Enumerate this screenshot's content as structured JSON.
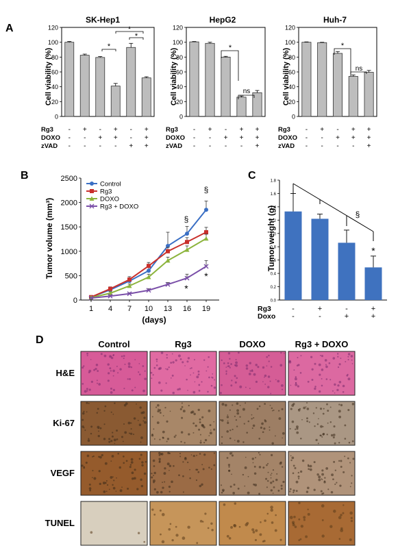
{
  "panel_letters": [
    "A",
    "B",
    "C",
    "D"
  ],
  "panel_a": {
    "ylabel": "Cell viability (%)",
    "yticks": [
      "0",
      "20",
      "40",
      "60",
      "80",
      "100",
      "120"
    ],
    "row_labels_1": [
      "Rg3",
      "DOXO",
      "zVAD"
    ],
    "row_labels_2": [
      "Rg3",
      "DOXO",
      "zVAD"
    ],
    "row_labels_3": [
      "Rg3",
      "DOXO",
      "zVAD"
    ],
    "star": "*",
    "ns": "ns"
  },
  "panel_b": {
    "ylabel": "Tumor volume (mm³)",
    "xlabel": "(days)",
    "section": "§",
    "star": "*"
  },
  "panel_c": {
    "ylabel": "Tumor weight (g)",
    "row_labels": [
      "Rg3",
      "Doxo"
    ],
    "section": "§",
    "star": "*"
  },
  "panel_d": {
    "columns": [
      "Control",
      "Rg3",
      "DOXO",
      "Rg3 + DOXO"
    ],
    "rows": [
      "H&E",
      "Ki-67",
      "VEGF",
      "TUNEL"
    ],
    "tile_colors": {
      "H&E": [
        "#d75b98",
        "#e06aa2",
        "#d55d96",
        "#dc69a1"
      ],
      "Ki-67": [
        "#8a5a32",
        "#a88768",
        "#9d7e64",
        "#aa9784"
      ],
      "VEGF": [
        "#955b2c",
        "#9b6b45",
        "#a48468",
        "#b0937a"
      ],
      "TUNEL": [
        "#d8cfbe",
        "#c6955a",
        "#c18a4c",
        "#a86a34"
      ]
    }
  },
  "chart_data": [
    {
      "type": "bar",
      "title": "SK-Hep1",
      "ylabel": "Cell viability (%)",
      "ylim": [
        0,
        120
      ],
      "categories": [
        "1",
        "2",
        "3",
        "4",
        "5",
        "6"
      ],
      "values": [
        100,
        82.5,
        79.5,
        41,
        93,
        52
      ],
      "errors": [
        1,
        1.5,
        1.2,
        3.5,
        5.5,
        1.5
      ],
      "conditions": {
        "Rg3": [
          "-",
          "+",
          "-",
          "+",
          "-",
          "+"
        ],
        "DOXO": [
          "-",
          "-",
          "+",
          "+",
          "-",
          "+"
        ],
        "zVAD": [
          "-",
          "-",
          "-",
          "-",
          "+",
          "+"
        ]
      }
    },
    {
      "type": "bar",
      "title": "HepG2",
      "ylabel": "Cell viability (%)",
      "ylim": [
        0,
        120
      ],
      "categories": [
        "1",
        "2",
        "3",
        "4",
        "5"
      ],
      "values": [
        100.5,
        98.5,
        80,
        26,
        32
      ],
      "errors": [
        0.5,
        1.5,
        1,
        1.5,
        3
      ],
      "conditions": {
        "Rg3": [
          "-",
          "+",
          "-",
          "+",
          "+"
        ],
        "DOXO": [
          "-",
          "-",
          "+",
          "+",
          "+"
        ],
        "zVAD": [
          "-",
          "-",
          "-",
          "-",
          "+"
        ]
      }
    },
    {
      "type": "bar",
      "title": "Huh-7",
      "ylabel": "Cell viability (%)",
      "ylim": [
        0,
        120
      ],
      "categories": [
        "1",
        "2",
        "3",
        "4",
        "5"
      ],
      "values": [
        100,
        99.5,
        85,
        54,
        59.5
      ],
      "errors": [
        0.5,
        0.5,
        2.5,
        2,
        2.5
      ],
      "conditions": {
        "Rg3": [
          "-",
          "+",
          "-",
          "+",
          "+"
        ],
        "DOXO": [
          "-",
          "-",
          "+",
          "+",
          "+"
        ],
        "zVAD": [
          "-",
          "-",
          "-",
          "-",
          "+"
        ]
      }
    },
    {
      "type": "line",
      "xlabel": "(days)",
      "ylabel": "Tumor volume (mm³)",
      "ylim": [
        0,
        2500
      ],
      "yticks": [
        0,
        500,
        1000,
        1500,
        2000,
        2500
      ],
      "x": [
        1,
        4,
        7,
        10,
        13,
        16,
        19
      ],
      "legend": "top-left",
      "series": [
        {
          "name": "Control",
          "color": "#3a6fc4",
          "marker": "circle",
          "values": [
            60,
            210,
            390,
            600,
            1110,
            1360,
            1850
          ],
          "errors": [
            20,
            40,
            60,
            80,
            280,
            150,
            180
          ]
        },
        {
          "name": "Rg3",
          "color": "#c9302c",
          "marker": "square",
          "values": [
            60,
            230,
            420,
            700,
            1000,
            1190,
            1390
          ],
          "errors": [
            20,
            40,
            60,
            70,
            80,
            90,
            100
          ]
        },
        {
          "name": "DOXO",
          "color": "#8cb43c",
          "marker": "triangle",
          "values": [
            50,
            140,
            290,
            470,
            810,
            1030,
            1260
          ],
          "errors": [
            15,
            30,
            40,
            60,
            70,
            80,
            90
          ]
        },
        {
          "name": "Rg3 + DOXO",
          "color": "#7a4fa8",
          "marker": "x",
          "values": [
            40,
            80,
            130,
            200,
            320,
            450,
            690
          ],
          "errors": [
            10,
            15,
            20,
            30,
            40,
            80,
            120
          ]
        }
      ]
    },
    {
      "type": "bar",
      "ylabel": "Tumor weight (g)",
      "ylim": [
        0,
        1.8
      ],
      "yticks": [
        "0.0",
        "0.2",
        "0.4",
        "0.6",
        "0.8",
        "1.0",
        "1.2",
        "1.4",
        "1.6",
        "1.8"
      ],
      "categories": [
        "1",
        "2",
        "3",
        "4"
      ],
      "values": [
        1.33,
        1.22,
        0.86,
        0.49
      ],
      "errors": [
        0.27,
        0.07,
        0.19,
        0.17
      ],
      "conditions": {
        "Rg3": [
          "-",
          "+",
          "-",
          "+"
        ],
        "Doxo": [
          "-",
          "-",
          "+",
          "+"
        ]
      }
    }
  ]
}
